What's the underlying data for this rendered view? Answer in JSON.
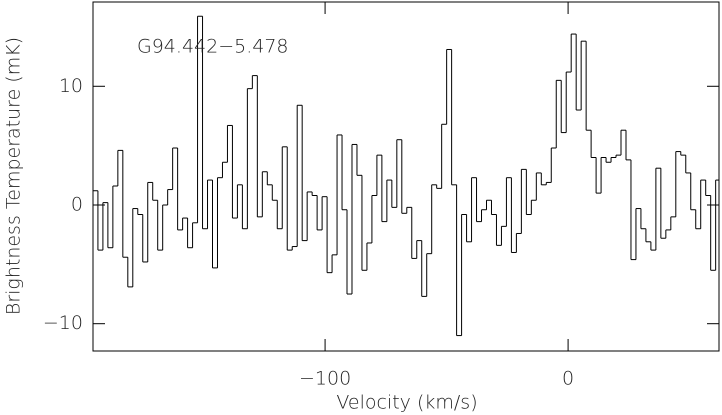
{
  "chart_data": {
    "type": "step",
    "xlabel": "Velocity (km/s)",
    "ylabel": "Brightness Temperature (mK)",
    "annotation": "G94.442−5.478",
    "color": "#000000",
    "xlim": [
      -195.5,
      62.1
    ],
    "ylim": [
      -12.3,
      17.1
    ],
    "xticks": [
      {
        "value": -100,
        "label": "−100"
      },
      0
    ],
    "yticks": [
      {
        "value": -10,
        "label": "−10"
      },
      0,
      10
    ],
    "x": [
      -194.5,
      -192.45,
      -190.4,
      -188.35,
      -186.3,
      -184.25,
      -182.2,
      -180.15,
      -178.1,
      -176.05,
      -174,
      -171.95,
      -169.9,
      -167.85,
      -165.8,
      -163.75,
      -161.7,
      -159.65,
      -157.6,
      -155.55,
      -153.5,
      -151.45,
      -149.4,
      -147.35,
      -145.3,
      -143.25,
      -141.2,
      -139.15,
      -137.1,
      -135.05,
      -133,
      -130.95,
      -128.9,
      -126.85,
      -124.8,
      -122.75,
      -120.7,
      -118.65,
      -116.6,
      -114.55,
      -112.5,
      -110.45,
      -108.4,
      -106.35,
      -104.3,
      -102.25,
      -100.2,
      -98.15,
      -96.1,
      -94.05,
      -92,
      -89.95,
      -87.9,
      -85.85,
      -83.8,
      -81.75,
      -79.7,
      -77.65,
      -75.6,
      -73.55,
      -71.5,
      -69.45,
      -67.4,
      -65.35,
      -63.3,
      -61.25,
      -59.2,
      -57.15,
      -55.1,
      -53.05,
      -51,
      -48.95,
      -46.9,
      -44.85,
      -42.8,
      -40.75,
      -38.7,
      -36.65,
      -34.6,
      -32.55,
      -30.5,
      -28.45,
      -26.4,
      -24.35,
      -22.3,
      -20.25,
      -18.2,
      -16.15,
      -14.1,
      -12.05,
      -10,
      -7.95,
      -5.9,
      -3.85,
      -1.8,
      0.25,
      2.3,
      4.35,
      6.4,
      8.45,
      10.5,
      12.55,
      14.6,
      16.65,
      18.7,
      20.75,
      22.8,
      24.85,
      26.9,
      28.95,
      31,
      33.05,
      35.1,
      37.15,
      39.2,
      41.25,
      43.3,
      45.35,
      47.4,
      49.45,
      51.5,
      53.55,
      55.6,
      57.65,
      59.7,
      61.75
    ],
    "values": [
      1.2,
      -3.8,
      0.2,
      -3.6,
      1.6,
      4.6,
      -4.4,
      -6.9,
      -0.3,
      -0.8,
      -4.8,
      1.9,
      0.4,
      -3.8,
      0,
      1.3,
      4.8,
      -2.1,
      -1.1,
      -3.6,
      -1.5,
      15.9,
      -2,
      2.1,
      -5.3,
      2.3,
      3.6,
      6.7,
      -1.1,
      1.7,
      -2,
      9.8,
      10.9,
      -1,
      2.8,
      1.7,
      0.4,
      -2,
      4.9,
      -3.8,
      -3.5,
      8.4,
      -3,
      1.1,
      0.8,
      -2.1,
      0.7,
      -5.7,
      -4.2,
      5.9,
      -0.4,
      -7.5,
      5.1,
      2.5,
      -5.5,
      -3.2,
      0.8,
      4.2,
      -1.4,
      2.1,
      -0.2,
      5.5,
      -0.7,
      -0.2,
      -4.5,
      -3,
      -7.7,
      -4.1,
      1.7,
      1.4,
      6.8,
      13.1,
      1.7,
      -11,
      -0.8,
      -3.1,
      2.3,
      -1.4,
      -0.4,
      0.4,
      -0.8,
      -3.4,
      -1.8,
      2.3,
      -4,
      -2.4,
      3,
      -0.8,
      0.4,
      2.7,
      1.7,
      1.9,
      4.8,
      10.5,
      6.1,
      11.2,
      14.4,
      8,
      13.8,
      6.3,
      4,
      1,
      4,
      3.6,
      4,
      4.2,
      6.3,
      3.8,
      -4.6,
      -0.3,
      -2,
      -3.1,
      -3.8,
      3.1,
      -2.8,
      -2.1,
      -1,
      4.5,
      4.2,
      2.7,
      -0.4,
      -2,
      2.1,
      0.8,
      -5.5,
      2.1
    ]
  }
}
